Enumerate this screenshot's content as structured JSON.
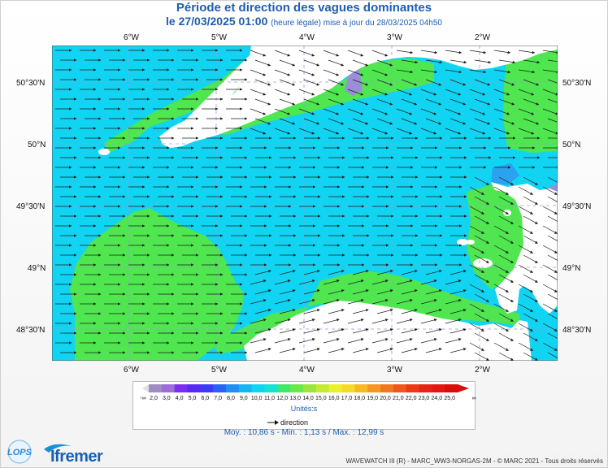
{
  "header": {
    "title": "Période et direction des vagues dominantes",
    "date": "le 27/03/2025 01:00",
    "update_note": "(heure légale) mise à jour du 28/03/2025 04h50"
  },
  "map": {
    "lon_ticks": [
      "6°W",
      "5°W",
      "4°W",
      "3°W",
      "2°W"
    ],
    "lat_ticks": [
      "50°30'N",
      "50°N",
      "49°30'N",
      "49°N",
      "48°30'N"
    ],
    "colors": {
      "sea_main": "#11d4f2",
      "sea_green": "#4fe64f",
      "sea_blue": "#2aa2f0",
      "sea_purple": "#9a8ed8",
      "land": "#ffffff",
      "grid": "#9a9ad6",
      "arrow": "#1a1a1a"
    },
    "dominant_direction": "eastward"
  },
  "legend": {
    "low_symbol": "-∞",
    "values": [
      "2,0",
      "3,0",
      "4,0",
      "5,0",
      "6,0",
      "7,0",
      "8,0",
      "9,0",
      "10,0",
      "11,0",
      "12,0",
      "13,0",
      "14,0",
      "15,0",
      "16,0",
      "17,0",
      "18,0",
      "19,0",
      "20,0",
      "21,0",
      "22,0",
      "23,0",
      "24,0",
      "25,0"
    ],
    "high_symbol": "∞",
    "colors": [
      "#a18cc4",
      "#9a6ddb",
      "#7a2ef0",
      "#5a2af5",
      "#3b3af5",
      "#2b62f5",
      "#1f8ff3",
      "#17b5f0",
      "#11d4f2",
      "#14e3d3",
      "#3ee86a",
      "#6ae84a",
      "#9ae63c",
      "#c4ea34",
      "#eaef2e",
      "#f7d92a",
      "#f8b826",
      "#f79623",
      "#f37720",
      "#ef581c",
      "#eb3a18",
      "#e72414",
      "#e11810",
      "#d80e0c"
    ],
    "units": "Unités:s",
    "direction_label": "direction"
  },
  "stats": {
    "text": "Moy. : 10,86 s   -   Min. : 1,13 s / Max. : 12,99 s"
  },
  "footer": {
    "credit": "WAVEWATCH III (R) - MARC_WW3-NORGAS-2M - © MARC 2021 - Tous droits réservés",
    "logo_lops": "LOPS",
    "logo_ifremer": "Ifremer"
  }
}
